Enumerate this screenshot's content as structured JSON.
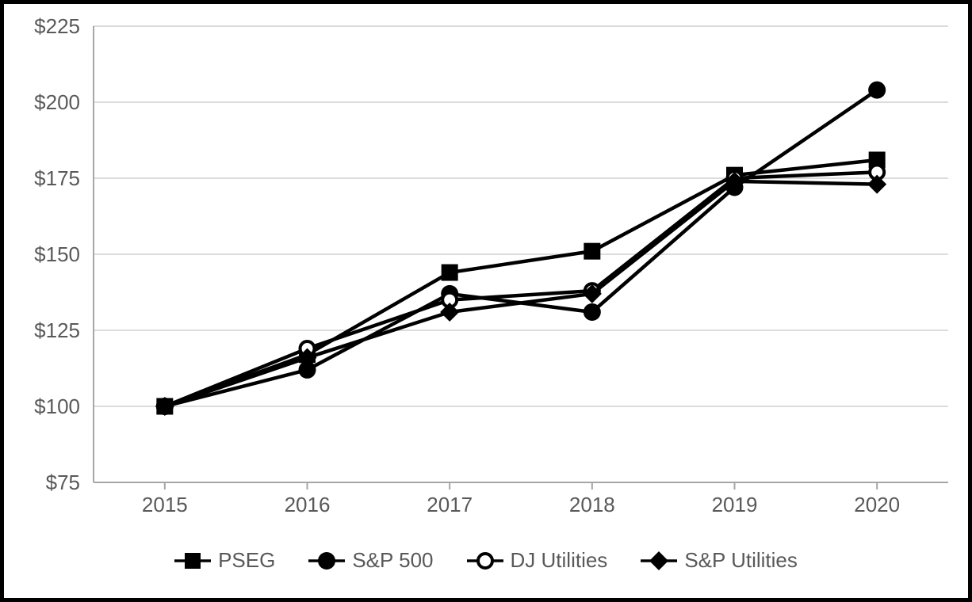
{
  "chart_data": {
    "type": "line",
    "title": "",
    "categories": [
      "2015",
      "2016",
      "2017",
      "2018",
      "2019",
      "2020"
    ],
    "series": [
      {
        "name": "PSEG",
        "marker": "filled-square",
        "values": [
          100,
          117,
          144,
          151,
          176,
          181
        ]
      },
      {
        "name": "S&P 500",
        "marker": "filled-circle",
        "values": [
          100,
          112,
          137,
          131,
          172,
          204
        ]
      },
      {
        "name": "DJ Utilities",
        "marker": "open-circle",
        "values": [
          100,
          119,
          135,
          138,
          175,
          177
        ]
      },
      {
        "name": "S&P Utilities",
        "marker": "filled-diamond",
        "values": [
          100,
          116,
          131,
          137,
          174,
          173
        ]
      }
    ],
    "y_axis": {
      "min": 75,
      "max": 225,
      "ticks": [
        {
          "label": "$225",
          "value": 225
        },
        {
          "label": "$200",
          "value": 200
        },
        {
          "label": "$175",
          "value": 175
        },
        {
          "label": "$150",
          "value": 150
        },
        {
          "label": "$125",
          "value": 125
        },
        {
          "label": "$100",
          "value": 100
        },
        {
          "label": "$75",
          "value": 75
        }
      ]
    },
    "grid": true,
    "legend_position": "bottom",
    "colors": {
      "line": "#000000",
      "label": "#595959",
      "axis": "#a6a6a6",
      "grid": "#dcdcdc",
      "background": "#ffffff",
      "frame_border": "#000000"
    }
  }
}
